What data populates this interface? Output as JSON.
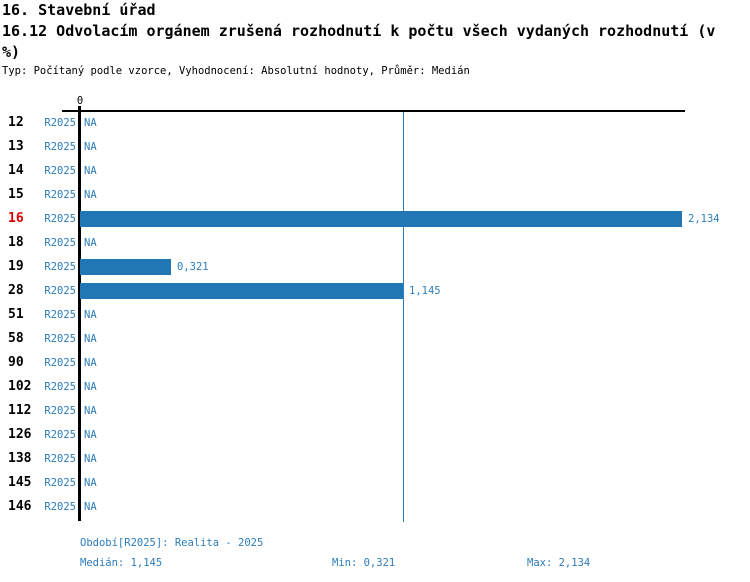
{
  "header": {
    "title_line1": "16. Stavební úřad",
    "title_line2": "16.12 Odvolacím orgánem zrušená rozhodnutí k počtu všech vydaných rozhodnutí (v %)",
    "meta_line": "Typ: Počítaný podle vzorce, Vyhodnocení: Absolutní hodnoty, Průměr: Medián"
  },
  "chart_data": {
    "type": "bar",
    "orientation": "horizontal",
    "title": "16.12 Odvolacím orgánem zrušená rozhodnutí k počtu všech vydaných rozhodnutí (v %)",
    "categories": [
      "12",
      "13",
      "14",
      "15",
      "16",
      "18",
      "19",
      "28",
      "51",
      "58",
      "90",
      "102",
      "112",
      "126",
      "138",
      "145",
      "146"
    ],
    "series": [
      {
        "name": "R2025",
        "values": [
          null,
          null,
          null,
          null,
          2.134,
          null,
          0.321,
          1.145,
          null,
          null,
          null,
          null,
          null,
          null,
          null,
          null,
          null
        ]
      }
    ],
    "value_labels": [
      "NA",
      "NA",
      "NA",
      "NA",
      "2,134",
      "NA",
      "0,321",
      "1,145",
      "NA",
      "NA",
      "NA",
      "NA",
      "NA",
      "NA",
      "NA",
      "NA",
      "NA"
    ],
    "na_label": "NA",
    "axis_zero_label": "0",
    "xlim": [
      0,
      2.134
    ],
    "median_line": 1.145,
    "highlighted_category": "16",
    "grid": false,
    "legend": false
  },
  "footer": {
    "period_label": "Období[R2025]: Realita - 2025",
    "median_label": "Medián: 1,145",
    "min_label": "Min: 0,321",
    "max_label": "Max: 2,134"
  },
  "colors": {
    "bar": "#2177b4",
    "blue_text": "#2d7dbb",
    "highlight_red": "#dd0000",
    "axis_black": "#000000",
    "median_line": "#2d7dbb"
  }
}
